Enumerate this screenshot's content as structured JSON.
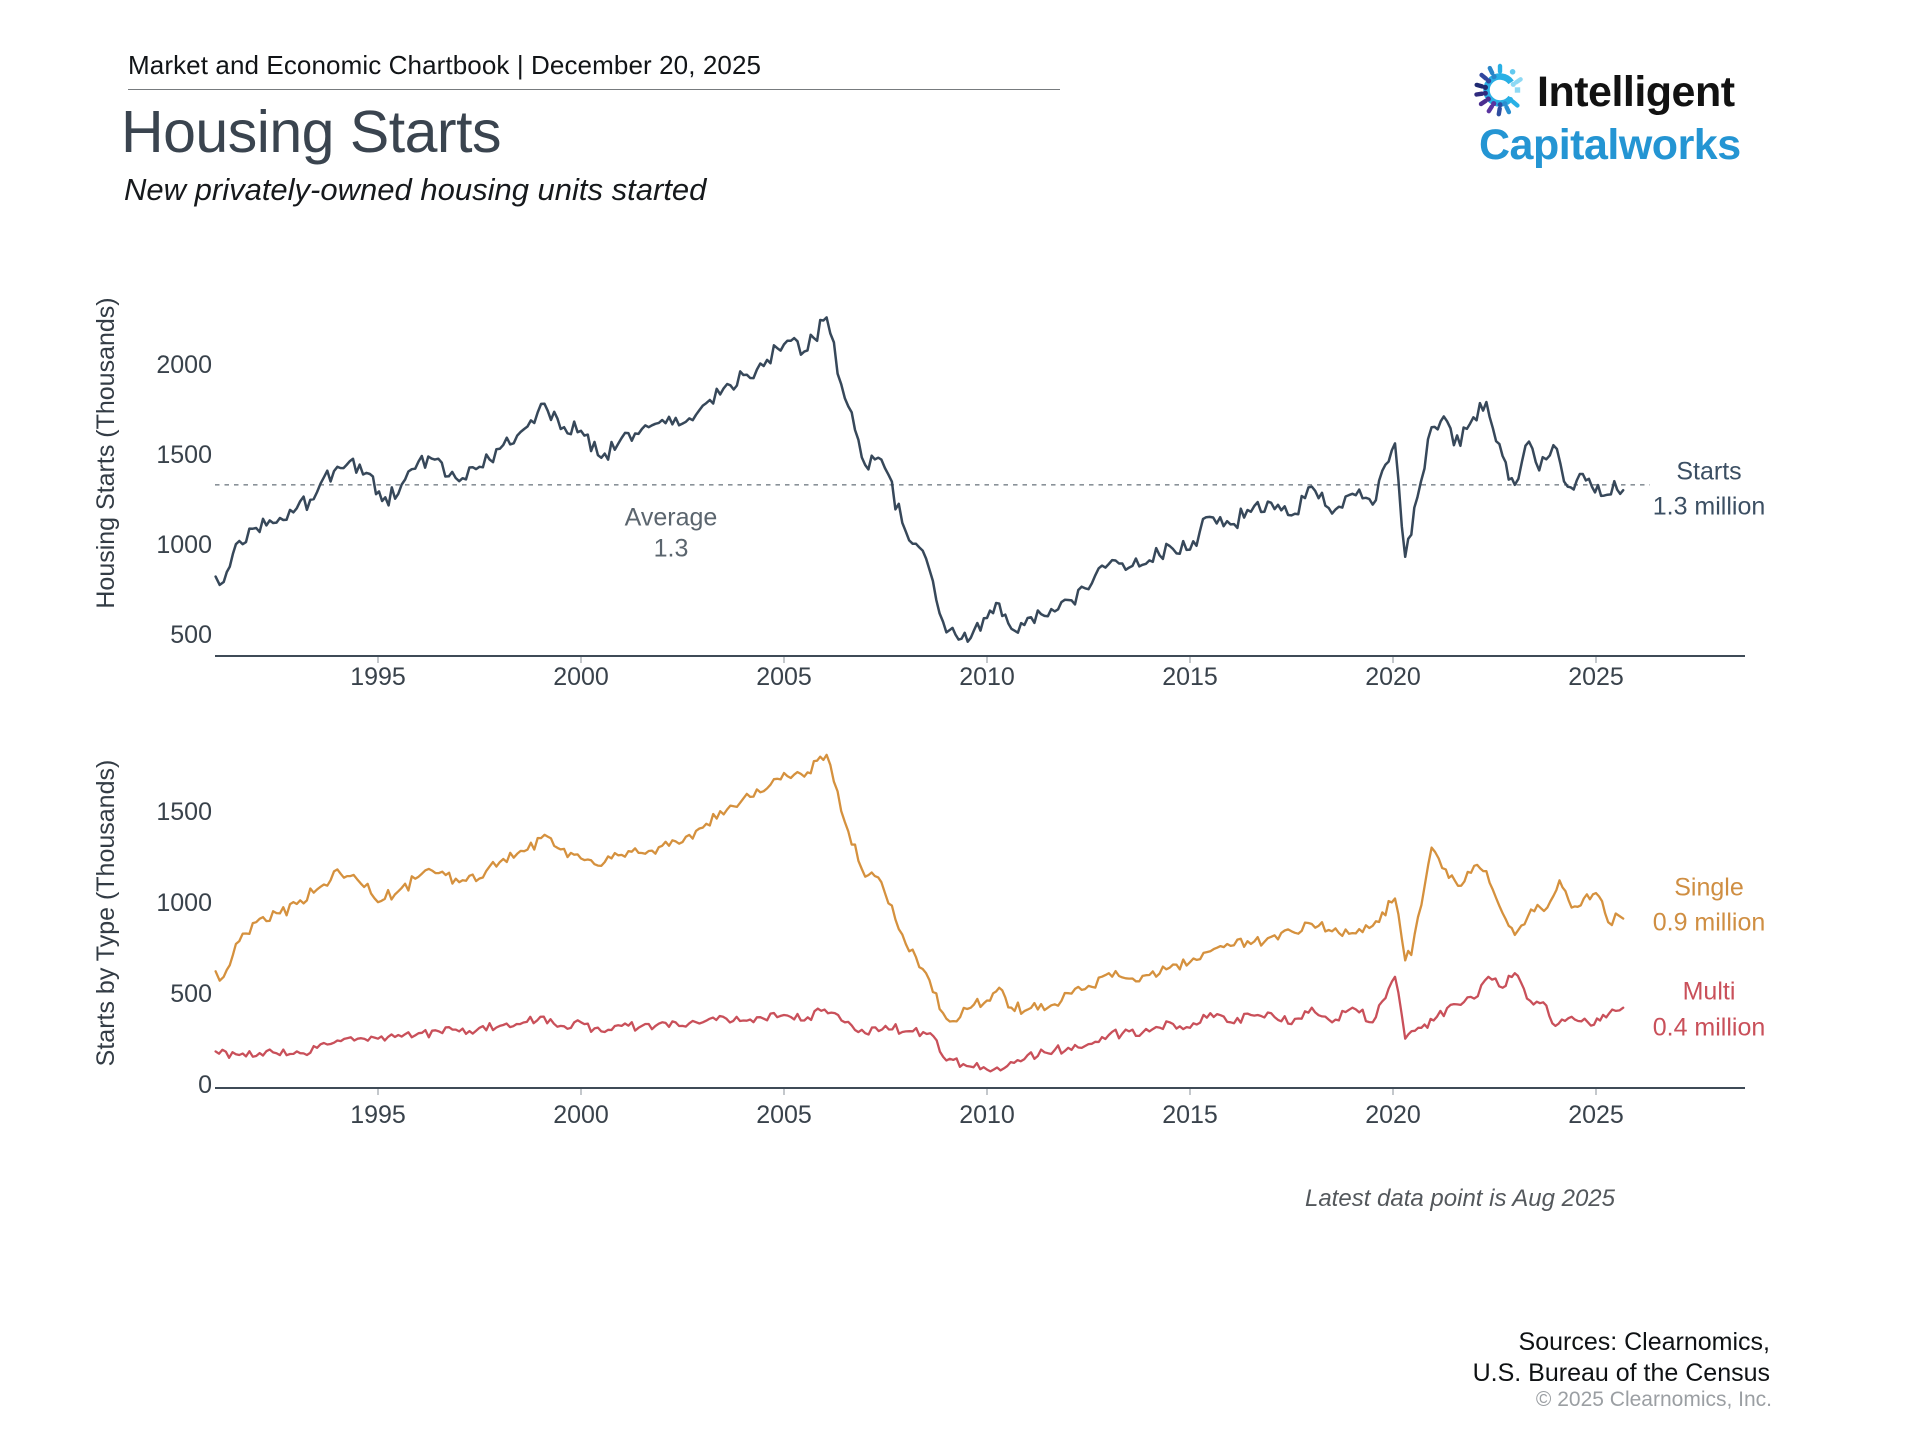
{
  "header": {
    "chartbook": "Market and Economic Chartbook | December 20, 2025"
  },
  "title": "Housing Starts",
  "subtitle": "New privately-owned housing units started",
  "logo": {
    "line1": "Intelligent",
    "line2": "Capitalworks",
    "accent_color": "#2495d3"
  },
  "footnote": "Latest data point is Aug 2025",
  "sources": {
    "line1": "Sources: Clearnomics,",
    "line2": "U.S. Bureau of the Census",
    "copyright": "© 2025 Clearnomics, Inc."
  },
  "chart_data": [
    {
      "type": "line",
      "y_axis_title": "Housing Starts (Thousands)",
      "y_ticks": [
        2000,
        1500,
        1000,
        500
      ],
      "x_ticks": [
        1995,
        2000,
        2005,
        2010,
        2015,
        2020,
        2025
      ],
      "xlim": [
        1991,
        2028.7
      ],
      "ylim": [
        380,
        2350
      ],
      "grid": false,
      "average_line": {
        "value": 1340,
        "label_line1": "Average",
        "label_line2": "1.3",
        "style": "dashed",
        "color": "#8a9299"
      },
      "series": [
        {
          "name": "Starts",
          "color": "#37485a",
          "label_line1": "Starts",
          "label_line2": "1.3 million",
          "latest": {
            "date": "Aug 2025",
            "value_millions": 1.3
          },
          "monthly_noise": 55,
          "anchors": [
            [
              1991.0,
              830
            ],
            [
              1991.2,
              800
            ],
            [
              1991.5,
              1010
            ],
            [
              1992.0,
              1100
            ],
            [
              1992.5,
              1130
            ],
            [
              1993.0,
              1210
            ],
            [
              1993.5,
              1300
            ],
            [
              1994.0,
              1440
            ],
            [
              1994.3,
              1470
            ],
            [
              1994.8,
              1400
            ],
            [
              1995.1,
              1250
            ],
            [
              1995.5,
              1290
            ],
            [
              1996.0,
              1470
            ],
            [
              1996.4,
              1480
            ],
            [
              1997.0,
              1360
            ],
            [
              1997.5,
              1440
            ],
            [
              1998.0,
              1540
            ],
            [
              1998.6,
              1650
            ],
            [
              1999.1,
              1790
            ],
            [
              1999.5,
              1650
            ],
            [
              2000.0,
              1640
            ],
            [
              2000.5,
              1490
            ],
            [
              2001.0,
              1600
            ],
            [
              2001.5,
              1650
            ],
            [
              2002.0,
              1700
            ],
            [
              2002.5,
              1680
            ],
            [
              2003.0,
              1780
            ],
            [
              2003.6,
              1900
            ],
            [
              2004.0,
              1950
            ],
            [
              2004.5,
              2000
            ],
            [
              2005.0,
              2120
            ],
            [
              2005.5,
              2080
            ],
            [
              2006.05,
              2270
            ],
            [
              2006.5,
              1820
            ],
            [
              2007.0,
              1450
            ],
            [
              2007.4,
              1480
            ],
            [
              2008.0,
              1080
            ],
            [
              2008.5,
              930
            ],
            [
              2009.0,
              520
            ],
            [
              2009.3,
              480
            ],
            [
              2009.6,
              490
            ],
            [
              2010.0,
              600
            ],
            [
              2010.3,
              680
            ],
            [
              2010.6,
              540
            ],
            [
              2011.0,
              600
            ],
            [
              2011.5,
              610
            ],
            [
              2012.0,
              700
            ],
            [
              2012.5,
              760
            ],
            [
              2013.0,
              900
            ],
            [
              2013.5,
              880
            ],
            [
              2014.0,
              920
            ],
            [
              2014.5,
              1000
            ],
            [
              2015.0,
              980
            ],
            [
              2015.4,
              1160
            ],
            [
              2016.0,
              1120
            ],
            [
              2016.5,
              1190
            ],
            [
              2017.0,
              1240
            ],
            [
              2017.5,
              1170
            ],
            [
              2018.0,
              1330
            ],
            [
              2018.5,
              1180
            ],
            [
              2019.0,
              1290
            ],
            [
              2019.5,
              1230
            ],
            [
              2020.05,
              1570
            ],
            [
              2020.3,
              940
            ],
            [
              2020.6,
              1270
            ],
            [
              2020.95,
              1660
            ],
            [
              2021.25,
              1720
            ],
            [
              2021.5,
              1560
            ],
            [
              2021.9,
              1680
            ],
            [
              2022.3,
              1800
            ],
            [
              2022.7,
              1500
            ],
            [
              2023.0,
              1340
            ],
            [
              2023.35,
              1580
            ],
            [
              2023.6,
              1420
            ],
            [
              2023.95,
              1560
            ],
            [
              2024.3,
              1330
            ],
            [
              2024.6,
              1400
            ],
            [
              2024.9,
              1330
            ],
            [
              2025.2,
              1280
            ],
            [
              2025.45,
              1360
            ],
            [
              2025.67,
              1310
            ]
          ]
        }
      ]
    },
    {
      "type": "line",
      "y_axis_title": "Starts by Type (Thousands)",
      "y_ticks": [
        1500,
        1000,
        500,
        0
      ],
      "x_ticks": [
        1995,
        2000,
        2005,
        2010,
        2015,
        2020,
        2025
      ],
      "xlim": [
        1991,
        2028.7
      ],
      "ylim": [
        0,
        1900
      ],
      "grid": false,
      "series": [
        {
          "name": "Single",
          "color": "#d5913e",
          "label_line1": "Single",
          "label_line2": "0.9 million",
          "latest": {
            "date": "Aug 2025",
            "value_millions": 0.9
          },
          "monthly_noise": 38,
          "anchors": [
            [
              1991.0,
              630
            ],
            [
              1991.2,
              600
            ],
            [
              1991.5,
              780
            ],
            [
              1992.0,
              900
            ],
            [
              1992.5,
              950
            ],
            [
              1993.0,
              1000
            ],
            [
              1993.5,
              1080
            ],
            [
              1994.0,
              1190
            ],
            [
              1994.4,
              1160
            ],
            [
              1995.0,
              1010
            ],
            [
              1995.5,
              1070
            ],
            [
              1996.0,
              1150
            ],
            [
              1996.5,
              1170
            ],
            [
              1997.0,
              1120
            ],
            [
              1997.5,
              1140
            ],
            [
              1998.0,
              1230
            ],
            [
              1998.6,
              1290
            ],
            [
              1999.1,
              1380
            ],
            [
              1999.5,
              1300
            ],
            [
              2000.0,
              1250
            ],
            [
              2000.5,
              1210
            ],
            [
              2001.0,
              1270
            ],
            [
              2001.5,
              1280
            ],
            [
              2002.0,
              1320
            ],
            [
              2002.5,
              1340
            ],
            [
              2003.0,
              1420
            ],
            [
              2003.6,
              1520
            ],
            [
              2004.0,
              1580
            ],
            [
              2004.5,
              1620
            ],
            [
              2005.0,
              1720
            ],
            [
              2005.5,
              1700
            ],
            [
              2006.05,
              1820
            ],
            [
              2006.5,
              1450
            ],
            [
              2007.0,
              1150
            ],
            [
              2007.4,
              1120
            ],
            [
              2008.0,
              780
            ],
            [
              2008.5,
              620
            ],
            [
              2009.0,
              370
            ],
            [
              2009.25,
              355
            ],
            [
              2009.6,
              430
            ],
            [
              2010.0,
              470
            ],
            [
              2010.3,
              540
            ],
            [
              2010.6,
              430
            ],
            [
              2011.0,
              420
            ],
            [
              2011.5,
              430
            ],
            [
              2012.0,
              510
            ],
            [
              2012.5,
              550
            ],
            [
              2013.0,
              620
            ],
            [
              2013.5,
              590
            ],
            [
              2014.0,
              610
            ],
            [
              2014.5,
              650
            ],
            [
              2015.0,
              680
            ],
            [
              2015.5,
              740
            ],
            [
              2016.0,
              770
            ],
            [
              2016.5,
              780
            ],
            [
              2017.0,
              820
            ],
            [
              2017.5,
              850
            ],
            [
              2018.0,
              890
            ],
            [
              2018.5,
              850
            ],
            [
              2019.0,
              840
            ],
            [
              2019.5,
              880
            ],
            [
              2020.05,
              1030
            ],
            [
              2020.3,
              690
            ],
            [
              2020.45,
              720
            ],
            [
              2020.95,
              1310
            ],
            [
              2021.3,
              1190
            ],
            [
              2021.6,
              1100
            ],
            [
              2022.0,
              1210
            ],
            [
              2022.3,
              1180
            ],
            [
              2022.7,
              950
            ],
            [
              2023.0,
              830
            ],
            [
              2023.4,
              970
            ],
            [
              2023.8,
              980
            ],
            [
              2024.1,
              1130
            ],
            [
              2024.4,
              980
            ],
            [
              2024.7,
              1030
            ],
            [
              2025.0,
              1060
            ],
            [
              2025.3,
              900
            ],
            [
              2025.67,
              920
            ]
          ]
        },
        {
          "name": "Multi",
          "color": "#c9505a",
          "label_line1": "Multi",
          "label_line2": "0.4 million",
          "latest": {
            "date": "Aug 2025",
            "value_millions": 0.4
          },
          "monthly_noise": 30,
          "anchors": [
            [
              1991.0,
              190
            ],
            [
              1991.5,
              175
            ],
            [
              1992.0,
              165
            ],
            [
              1992.5,
              180
            ],
            [
              1993.0,
              190
            ],
            [
              1993.5,
              210
            ],
            [
              1994.0,
              250
            ],
            [
              1994.5,
              260
            ],
            [
              1995.0,
              260
            ],
            [
              1995.5,
              280
            ],
            [
              1996.0,
              290
            ],
            [
              1996.5,
              300
            ],
            [
              1997.0,
              300
            ],
            [
              1997.5,
              320
            ],
            [
              1998.0,
              330
            ],
            [
              1998.5,
              340
            ],
            [
              1999.0,
              380
            ],
            [
              1999.5,
              330
            ],
            [
              2000.0,
              350
            ],
            [
              2000.5,
              300
            ],
            [
              2001.0,
              330
            ],
            [
              2001.5,
              330
            ],
            [
              2002.0,
              350
            ],
            [
              2002.5,
              330
            ],
            [
              2003.0,
              350
            ],
            [
              2003.5,
              380
            ],
            [
              2004.0,
              360
            ],
            [
              2004.5,
              370
            ],
            [
              2005.0,
              390
            ],
            [
              2005.5,
              360
            ],
            [
              2006.0,
              420
            ],
            [
              2006.5,
              350
            ],
            [
              2007.0,
              290
            ],
            [
              2007.5,
              330
            ],
            [
              2008.0,
              300
            ],
            [
              2008.6,
              290
            ],
            [
              2009.0,
              140
            ],
            [
              2009.5,
              110
            ],
            [
              2010.0,
              90
            ],
            [
              2010.5,
              110
            ],
            [
              2011.0,
              170
            ],
            [
              2011.5,
              180
            ],
            [
              2012.0,
              210
            ],
            [
              2012.5,
              230
            ],
            [
              2013.0,
              280
            ],
            [
              2013.5,
              300
            ],
            [
              2014.0,
              300
            ],
            [
              2014.5,
              350
            ],
            [
              2015.0,
              320
            ],
            [
              2015.5,
              400
            ],
            [
              2016.0,
              350
            ],
            [
              2016.5,
              390
            ],
            [
              2017.0,
              400
            ],
            [
              2017.5,
              340
            ],
            [
              2018.0,
              430
            ],
            [
              2018.5,
              350
            ],
            [
              2019.0,
              430
            ],
            [
              2019.5,
              350
            ],
            [
              2020.05,
              600
            ],
            [
              2020.3,
              260
            ],
            [
              2020.7,
              320
            ],
            [
              2021.0,
              360
            ],
            [
              2021.5,
              450
            ],
            [
              2022.0,
              480
            ],
            [
              2022.35,
              600
            ],
            [
              2022.7,
              540
            ],
            [
              2023.0,
              620
            ],
            [
              2023.3,
              480
            ],
            [
              2023.7,
              460
            ],
            [
              2024.0,
              330
            ],
            [
              2024.4,
              380
            ],
            [
              2024.8,
              350
            ],
            [
              2025.1,
              360
            ],
            [
              2025.4,
              420
            ],
            [
              2025.67,
              430
            ]
          ]
        }
      ]
    }
  ]
}
